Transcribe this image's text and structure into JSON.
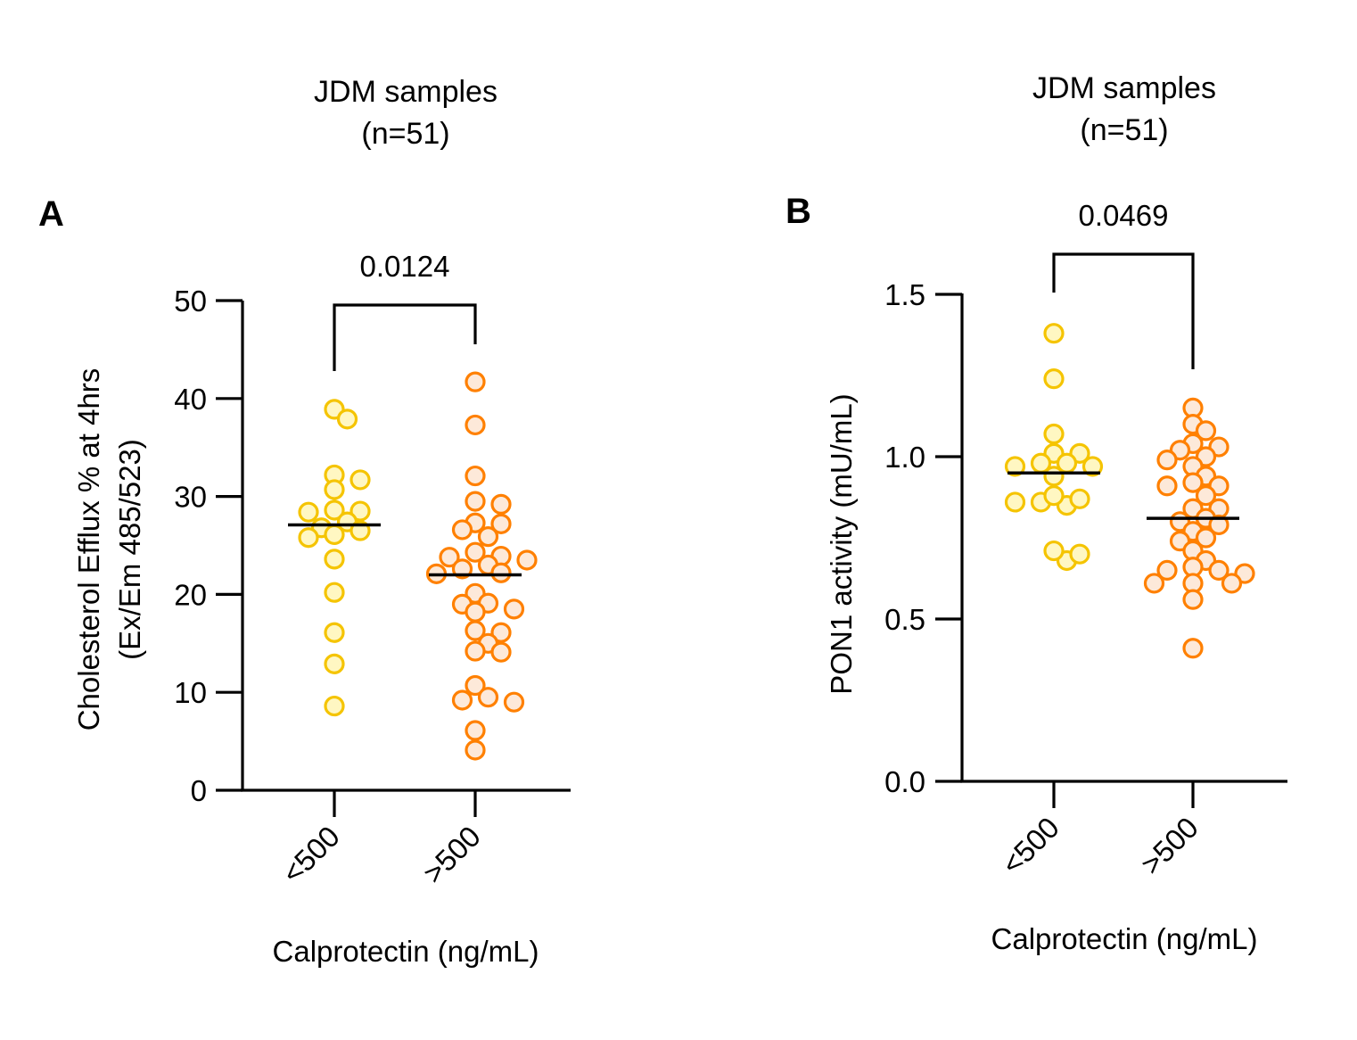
{
  "chart_data": [
    {
      "panel": "A",
      "type": "scatter",
      "subtype": "dot-plot-with-median",
      "title": "JDM samples\n(n=51)",
      "title_lines": [
        "JDM samples",
        "(n=51)"
      ],
      "panel_label": "A",
      "xlabel": "Calprotectin (ng/mL)",
      "ylabel_lines": [
        "Cholesterol Efflux % at 4hrs",
        "(Ex/Em 485/523)"
      ],
      "ylim": [
        0,
        50
      ],
      "yticks": [
        0,
        10,
        20,
        30,
        40,
        50
      ],
      "ytick_labels": [
        "0",
        "10",
        "20",
        "30",
        "40",
        "50"
      ],
      "categories": [
        "<500",
        ">500"
      ],
      "grid": false,
      "comparison": {
        "from": "<500",
        "to": ">500",
        "p_value": "0.0124"
      },
      "series": [
        {
          "name": "<500",
          "stroke": "#F5C400",
          "fill": "#FFF7C2",
          "median": 27.1,
          "values": [
            38.9,
            37.9,
            32.2,
            31.7,
            30.7,
            28.6,
            28.4,
            28.5,
            26.8,
            27.4,
            26.5,
            26.1,
            25.8,
            23.6,
            20.2,
            16.1,
            12.9,
            8.6
          ]
        },
        {
          "name": ">500",
          "stroke": "#FF8000",
          "fill": "#FDE9D9",
          "median": 22.0,
          "values": [
            41.7,
            37.3,
            32.1,
            29.5,
            29.2,
            27.3,
            26.6,
            27.2,
            25.9,
            23.9,
            24.3,
            23.8,
            23.5,
            23.0,
            22.6,
            22.2,
            22.1,
            20.1,
            19.0,
            18.5,
            19.1,
            18.2,
            16.3,
            16.1,
            15.0,
            14.2,
            14.1,
            10.7,
            9.2,
            9.5,
            9.0,
            6.1,
            4.1
          ]
        }
      ]
    },
    {
      "panel": "B",
      "type": "scatter",
      "subtype": "dot-plot-with-median",
      "title": "JDM samples\n(n=51)",
      "title_lines": [
        "JDM samples",
        "(n=51)"
      ],
      "panel_label": "B",
      "xlabel": "Calprotectin (ng/mL)",
      "ylabel_lines": [
        "PON1 activity (mU/mL)"
      ],
      "ylim": [
        0,
        1.5
      ],
      "yticks": [
        0,
        0.5,
        1.0,
        1.5
      ],
      "ytick_labels": [
        "0.0",
        "0.5",
        "1.0",
        "1.5"
      ],
      "categories": [
        "<500",
        ">500"
      ],
      "grid": false,
      "comparison": {
        "from": "<500",
        "to": ">500",
        "p_value": "0.0469"
      },
      "series": [
        {
          "name": "<500",
          "stroke": "#F5C400",
          "fill": "#FFF7C2",
          "median": 0.95,
          "values": [
            1.38,
            1.24,
            1.07,
            1.01,
            1.01,
            0.97,
            0.97,
            0.98,
            0.98,
            0.94,
            0.86,
            0.86,
            0.85,
            0.87,
            0.88,
            0.68,
            0.71,
            0.7
          ]
        },
        {
          "name": ">500",
          "stroke": "#FF8000",
          "fill": "#FDE9D9",
          "median": 0.81,
          "values": [
            1.15,
            1.1,
            1.08,
            1.03,
            1.04,
            1.02,
            0.99,
            1.0,
            0.97,
            0.94,
            0.92,
            0.91,
            0.91,
            0.88,
            0.84,
            0.84,
            0.81,
            0.8,
            0.79,
            0.77,
            0.75,
            0.74,
            0.71,
            0.68,
            0.65,
            0.65,
            0.64,
            0.66,
            0.61,
            0.61,
            0.61,
            0.56,
            0.41
          ]
        }
      ]
    }
  ]
}
